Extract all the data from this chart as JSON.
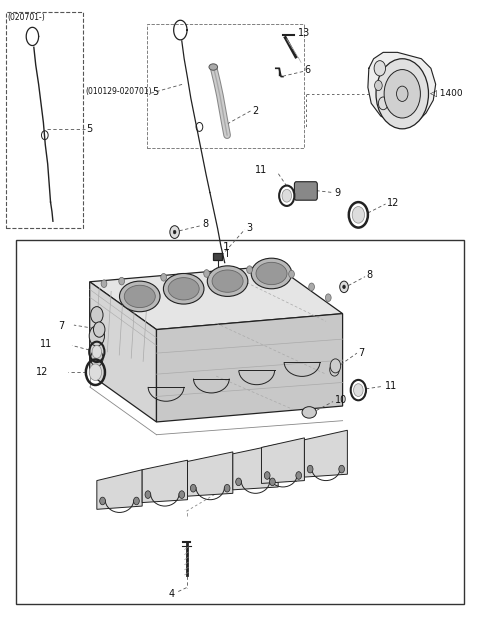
{
  "bg_color": "#ffffff",
  "line_color": "#222222",
  "fig_width": 4.8,
  "fig_height": 6.4,
  "dpi": 100,
  "box1_label": "(020701-)",
  "box2_label": "(010129-020701)",
  "label_1400": "◁ 1400"
}
